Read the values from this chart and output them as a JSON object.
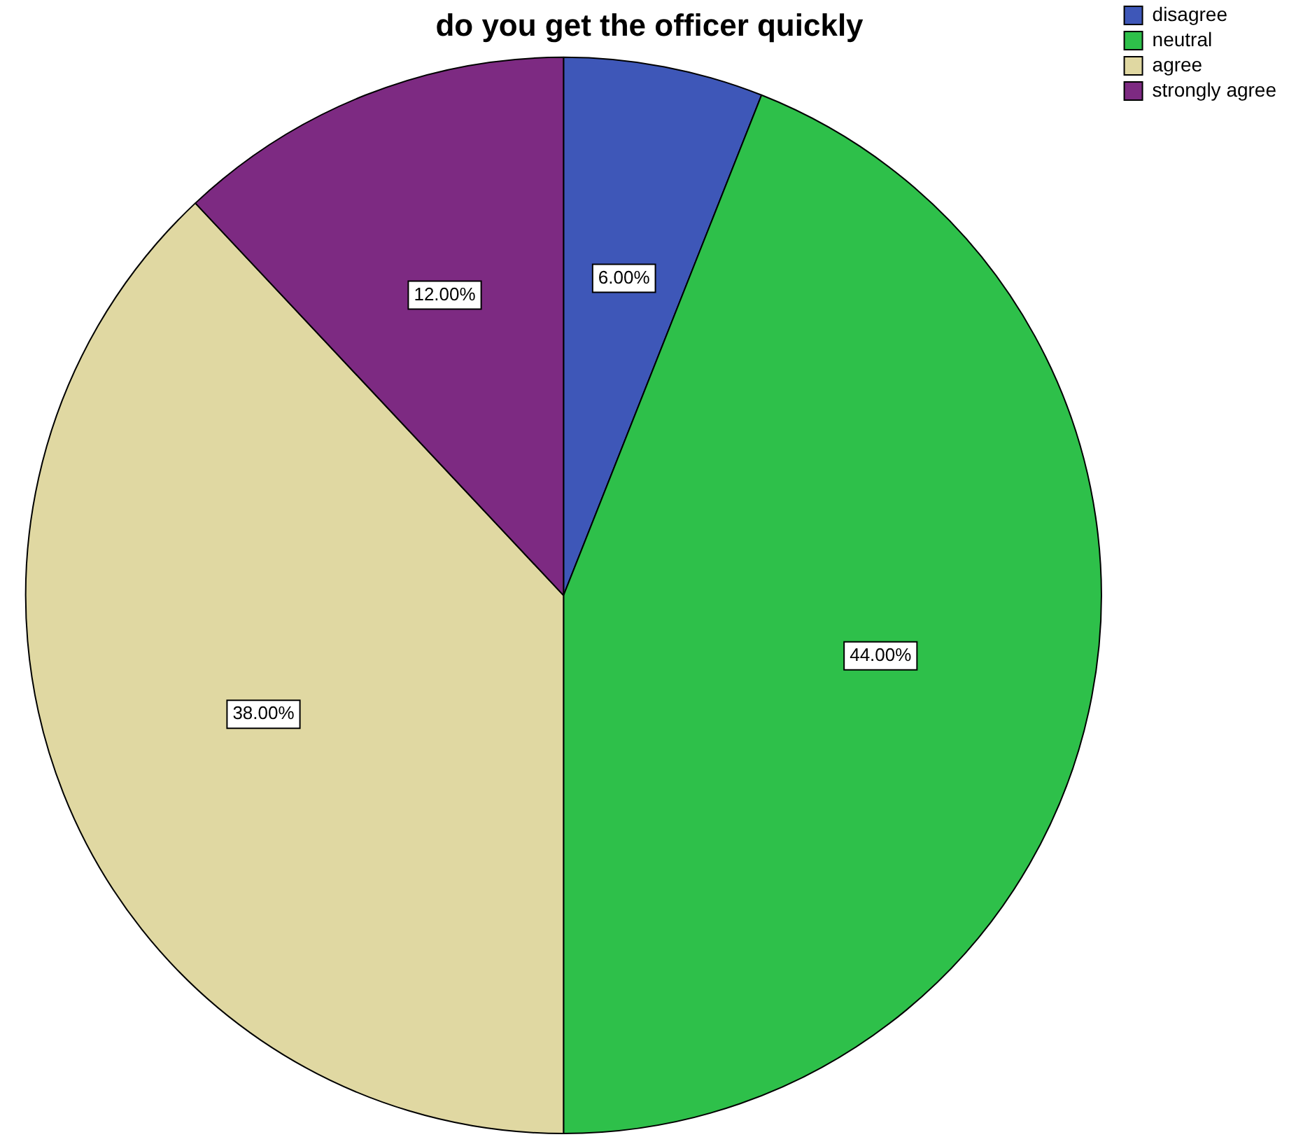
{
  "chart_data": {
    "type": "pie",
    "title": "do you get the officer quickly",
    "categories": [
      "disagree",
      "neutral",
      "agree",
      "strongly agree"
    ],
    "values": [
      6,
      44,
      38,
      12
    ],
    "colors": [
      "#3e57b8",
      "#2ec04a",
      "#e0d8a2",
      "#7d2a82"
    ],
    "value_labels": [
      "6.00%",
      "44.00%",
      "38.00%",
      "12.00%"
    ],
    "legend": "top right"
  }
}
